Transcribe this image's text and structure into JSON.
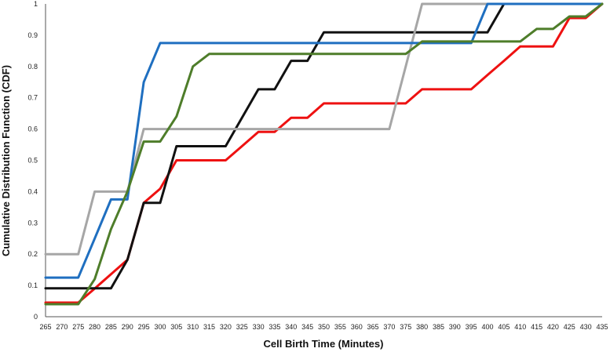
{
  "chart_data": {
    "type": "line",
    "title": "",
    "xlabel": "Cell Birth Time (Minutes)",
    "ylabel": "Cumulative Distribution Function (CDF)",
    "x": [
      265,
      270,
      275,
      280,
      285,
      290,
      295,
      300,
      305,
      310,
      315,
      320,
      325,
      330,
      335,
      340,
      345,
      350,
      355,
      360,
      365,
      370,
      375,
      380,
      385,
      390,
      395,
      400,
      405,
      410,
      415,
      420,
      425,
      430,
      435
    ],
    "x_tick_labels": [
      "265",
      "270",
      "275",
      "280",
      "285",
      "290",
      "295",
      "300",
      "305",
      "310",
      "315",
      "320",
      "325",
      "330",
      "335",
      "340",
      "345",
      "350",
      "355",
      "360",
      "365",
      "370",
      "375",
      "380",
      "385",
      "390",
      "395",
      "400",
      "405",
      "410",
      "415",
      "420",
      "425",
      "430",
      "435"
    ],
    "y_tick_labels": [
      "0",
      "0.1",
      "0.2",
      "0.3",
      "0.4",
      "0.5",
      "0.6",
      "0.7",
      "0.8",
      "0.9",
      "1"
    ],
    "ylim": [
      0,
      1
    ],
    "grid": false,
    "legend": "none",
    "series": [
      {
        "color": "#ee1111",
        "values": [
          0.045,
          0.045,
          0.045,
          0.09,
          0.136,
          0.182,
          0.364,
          0.409,
          0.5,
          0.5,
          0.5,
          0.5,
          0.545,
          0.591,
          0.591,
          0.636,
          0.636,
          0.682,
          0.682,
          0.682,
          0.682,
          0.682,
          0.682,
          0.727,
          0.727,
          0.727,
          0.727,
          0.773,
          0.818,
          0.864,
          0.864,
          0.864,
          0.955,
          0.955,
          1.0
        ]
      },
      {
        "color": "#111111",
        "values": [
          0.091,
          0.091,
          0.091,
          0.091,
          0.091,
          0.182,
          0.364,
          0.364,
          0.545,
          0.545,
          0.545,
          0.545,
          0.636,
          0.727,
          0.727,
          0.818,
          0.818,
          0.909,
          0.909,
          0.909,
          0.909,
          0.909,
          0.909,
          0.909,
          0.909,
          0.909,
          0.909,
          0.909,
          1.0,
          1.0,
          1.0,
          1.0,
          1.0,
          1.0,
          1.0
        ]
      },
      {
        "color": "#a6a6a6",
        "values": [
          0.2,
          0.2,
          0.2,
          0.4,
          0.4,
          0.4,
          0.6,
          0.6,
          0.6,
          0.6,
          0.6,
          0.6,
          0.6,
          0.6,
          0.6,
          0.6,
          0.6,
          0.6,
          0.6,
          0.6,
          0.6,
          0.6,
          0.8,
          1.0,
          1.0,
          1.0,
          1.0,
          1.0,
          1.0,
          1.0,
          1.0,
          1.0,
          1.0,
          1.0,
          1.0
        ]
      },
      {
        "color": "#1f6fc0",
        "values": [
          0.125,
          0.125,
          0.125,
          0.25,
          0.375,
          0.375,
          0.75,
          0.875,
          0.875,
          0.875,
          0.875,
          0.875,
          0.875,
          0.875,
          0.875,
          0.875,
          0.875,
          0.875,
          0.875,
          0.875,
          0.875,
          0.875,
          0.875,
          0.875,
          0.875,
          0.875,
          0.875,
          1.0,
          1.0,
          1.0,
          1.0,
          1.0,
          1.0,
          1.0,
          1.0
        ]
      },
      {
        "color": "#4e7d2a",
        "values": [
          0.04,
          0.04,
          0.04,
          0.12,
          0.28,
          0.4,
          0.56,
          0.56,
          0.64,
          0.8,
          0.84,
          0.84,
          0.84,
          0.84,
          0.84,
          0.84,
          0.84,
          0.84,
          0.84,
          0.84,
          0.84,
          0.84,
          0.84,
          0.88,
          0.88,
          0.88,
          0.88,
          0.88,
          0.88,
          0.88,
          0.92,
          0.92,
          0.96,
          0.96,
          1.0
        ]
      }
    ]
  }
}
